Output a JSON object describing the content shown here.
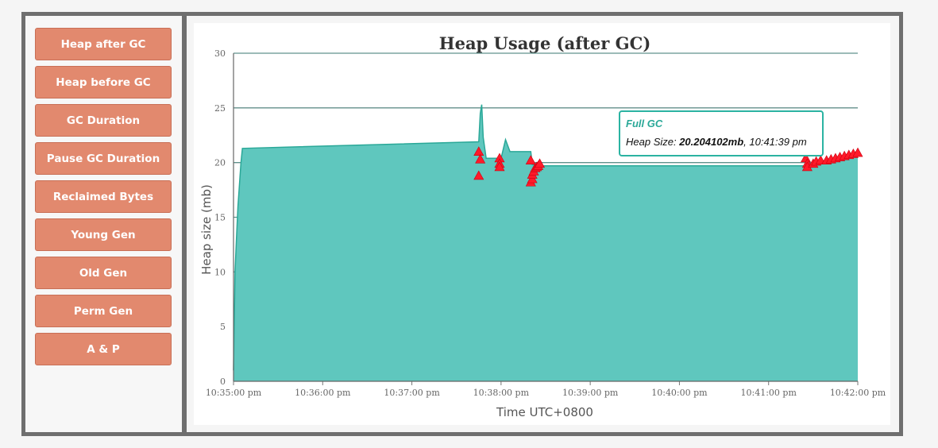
{
  "sidebar": {
    "items": [
      {
        "label": "Heap after GC"
      },
      {
        "label": "Heap before GC"
      },
      {
        "label": "GC Duration"
      },
      {
        "label": "Pause GC Duration"
      },
      {
        "label": "Reclaimed Bytes"
      },
      {
        "label": "Young Gen"
      },
      {
        "label": "Old Gen"
      },
      {
        "label": "Perm Gen"
      },
      {
        "label": "A & P"
      }
    ]
  },
  "tooltip": {
    "title": "Full GC",
    "prefix": "Heap Size: ",
    "value": "20.204102mb",
    "suffix": ", 10:41:39 pm"
  },
  "colors": {
    "area_fill": "#5fc7be",
    "area_line": "#2aa898",
    "marker": "#ff1a2a",
    "button": "#e2896e",
    "frame": "#6f6f6f"
  },
  "chart_data": {
    "type": "area",
    "title": "Heap Usage (after GC)",
    "xlabel": "Time UTC+0800",
    "ylabel": "Heap size (mb)",
    "xlim": [
      "10:35:00 pm",
      "10:42:00 pm"
    ],
    "ylim": [
      0,
      30
    ],
    "x_ticks": [
      "10:35:00 pm",
      "10:36:00 pm",
      "10:37:00 pm",
      "10:38:00 pm",
      "10:39:00 pm",
      "10:40:00 pm",
      "10:41:00 pm",
      "10:42:00 pm"
    ],
    "y_ticks": [
      0,
      5,
      10,
      15,
      20,
      25,
      30
    ],
    "grid": true,
    "series": [
      {
        "x": [
          "10:35:00 pm",
          "10:35:01 pm",
          "10:35:02 pm",
          "10:35:03 pm",
          "10:35:04 pm",
          "10:35:05 pm",
          "10:35:06 pm",
          "10:37:45 pm",
          "10:37:46 pm",
          "10:37:47 pm",
          "10:37:48 pm",
          "10:37:50 pm",
          "10:38:00 pm",
          "10:38:03 pm",
          "10:38:06 pm",
          "10:38:20 pm",
          "10:38:21 pm",
          "10:38:23 pm",
          "10:38:26 pm",
          "10:38:28 pm",
          "10:41:25 pm",
          "10:41:28 pm",
          "10:41:39 pm",
          "10:41:45 pm",
          "10:42:00 pm"
        ],
        "y": [
          1,
          10,
          13,
          16,
          18,
          20,
          21.3,
          21.9,
          24.5,
          25.3,
          22.3,
          20.4,
          20.4,
          22.1,
          21.0,
          21.0,
          19.8,
          19.8,
          19.8,
          19.7,
          19.7,
          19.9,
          20.2,
          20.4,
          21.0
        ]
      }
    ],
    "markers": {
      "name": "Full GC",
      "x": [
        "10:37:45 pm",
        "10:37:45 pm",
        "10:37:46 pm",
        "10:37:59 pm",
        "10:37:59 pm",
        "10:37:59 pm",
        "10:38:20 pm",
        "10:38:20 pm",
        "10:38:21 pm",
        "10:38:21 pm",
        "10:38:22 pm",
        "10:38:23 pm",
        "10:38:24 pm",
        "10:38:25 pm",
        "10:38:26 pm",
        "10:41:25 pm",
        "10:41:25 pm",
        "10:41:26 pm",
        "10:41:26 pm",
        "10:41:30 pm",
        "10:41:32 pm",
        "10:41:35 pm",
        "10:41:39 pm",
        "10:41:42 pm",
        "10:41:45 pm",
        "10:41:48 pm",
        "10:41:51 pm",
        "10:41:54 pm",
        "10:41:57 pm",
        "10:42:00 pm"
      ],
      "y": [
        18.8,
        21.0,
        20.3,
        20.4,
        19.9,
        19.6,
        20.2,
        18.2,
        18.5,
        18.9,
        19.2,
        19.5,
        19.6,
        19.7,
        19.9,
        21.0,
        20.4,
        19.9,
        19.6,
        19.9,
        20.1,
        20.2,
        20.2,
        20.3,
        20.4,
        20.5,
        20.6,
        20.7,
        20.8,
        20.9
      ]
    }
  }
}
